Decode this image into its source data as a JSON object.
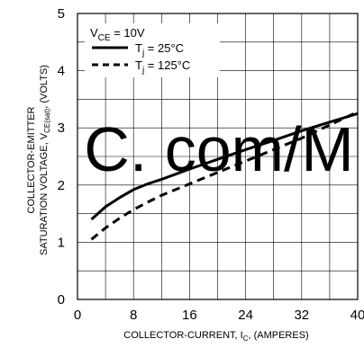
{
  "chart_data": {
    "type": "line",
    "xlabel": "COLLECTOR-CURRENT, I",
    "xlabel_sub": "C",
    "xlabel_suffix": ", (AMPERES)",
    "ylabel_line1": "COLLECTOR-EMITTER",
    "ylabel_line2": "SATURATION VOLTAGE, V",
    "ylabel_sub": "CE(sat)",
    "ylabel_suffix": ", (VOLTS)",
    "xlim": [
      0,
      40
    ],
    "ylim": [
      0,
      5
    ],
    "x_ticks": [
      0,
      8,
      16,
      24,
      32,
      40
    ],
    "x_tick_labels": [
      "0",
      "8",
      "16",
      "24",
      "32",
      "40"
    ],
    "y_ticks": [
      0,
      1,
      2,
      3,
      4,
      5
    ],
    "y_tick_labels": [
      "0",
      "1",
      "2",
      "3",
      "4",
      "5"
    ],
    "grid": true,
    "legend_placement": "top-left",
    "legend_header": {
      "prefix": "V",
      "sub": "CE",
      "suffix": " = 10V"
    },
    "series": [
      {
        "name": "Tⱼ = 25°C",
        "legend_prefix": "T",
        "legend_sub": "j",
        "legend_suffix": " = 25°C",
        "style": "solid",
        "x": [
          2,
          4,
          6,
          8,
          10,
          12,
          16,
          20,
          24,
          28,
          32,
          36,
          40
        ],
        "y": [
          1.4,
          1.62,
          1.78,
          1.92,
          2.02,
          2.1,
          2.28,
          2.45,
          2.62,
          2.78,
          2.95,
          3.1,
          3.25
        ]
      },
      {
        "name": "Tⱼ = 125°C",
        "legend_prefix": "T",
        "legend_sub": "j",
        "legend_suffix": " = 125°C",
        "style": "dashed",
        "x": [
          2,
          4,
          6,
          8,
          10,
          12,
          16,
          20,
          24,
          28,
          32,
          36,
          40
        ],
        "y": [
          1.05,
          1.25,
          1.42,
          1.57,
          1.7,
          1.82,
          2.02,
          2.22,
          2.42,
          2.62,
          2.82,
          3.05,
          3.28
        ]
      }
    ]
  },
  "watermark": "C. com/M",
  "colors": {
    "line": "#000000",
    "grid": "#000000",
    "background": "#ffffff"
  }
}
